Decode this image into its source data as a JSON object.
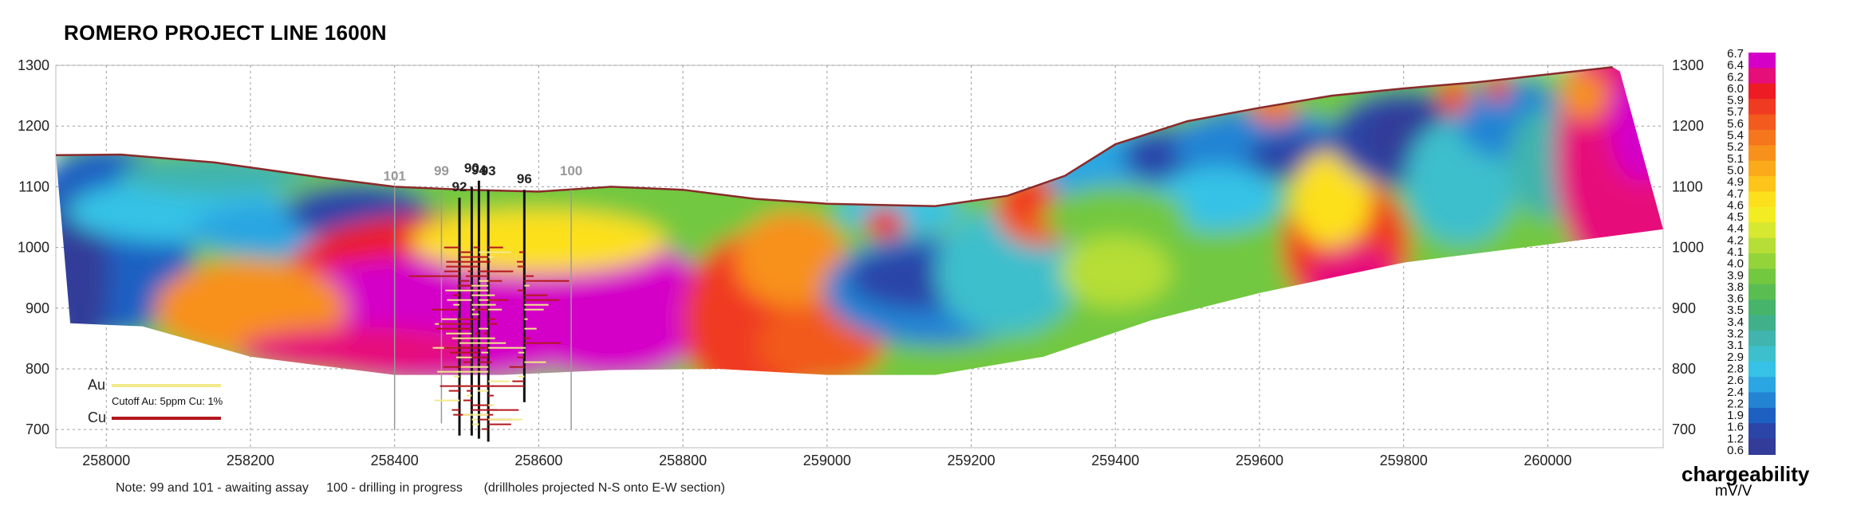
{
  "chart_data": {
    "type": "heatmap",
    "title": "ROMERO PROJECT LINE 1600N",
    "xlabel": "",
    "ylabel": "",
    "xlim": [
      257930,
      260160
    ],
    "ylim": [
      670,
      1300
    ],
    "x_ticks": [
      "258000",
      "258200",
      "258400",
      "258600",
      "258800",
      "259000",
      "259200",
      "259400",
      "259600",
      "259800",
      "260000"
    ],
    "y_ticks": [
      "1300",
      "1200",
      "1100",
      "1000",
      "900",
      "800",
      "700"
    ],
    "grid": true,
    "colorbar": {
      "title": "chargeability",
      "unit": "mV/V",
      "labels": [
        "6.7",
        "6.4",
        "6.2",
        "6.0",
        "5.9",
        "5.7",
        "5.6",
        "5.4",
        "5.2",
        "5.1",
        "5.0",
        "4.9",
        "4.7",
        "4.6",
        "4.5",
        "4.4",
        "4.2",
        "4.1",
        "4.0",
        "3.9",
        "3.8",
        "3.6",
        "3.5",
        "3.4",
        "3.2",
        "3.1",
        "2.9",
        "2.8",
        "2.6",
        "2.4",
        "2.2",
        "1.9",
        "1.6",
        "1.2",
        "0.6"
      ],
      "colors": [
        "#d400c8",
        "#e60f7a",
        "#ed1c24",
        "#f03a22",
        "#f25a1e",
        "#f5761d",
        "#f8901c",
        "#fbab1a",
        "#fdc41a",
        "#fde01c",
        "#f3ec22",
        "#d7e830",
        "#b6de36",
        "#94d43a",
        "#72c83f",
        "#5abd52",
        "#46b46a",
        "#3fb08a",
        "#40b4ad",
        "#3ebfcc",
        "#36c2e6",
        "#2ca6e2",
        "#2484d4",
        "#1e60c2",
        "#2c45a8",
        "#333c99"
      ]
    },
    "surface_profile": [
      [
        257930,
        1152
      ],
      [
        258020,
        1153
      ],
      [
        258150,
        1140
      ],
      [
        258300,
        1115
      ],
      [
        258400,
        1100
      ],
      [
        258500,
        1095
      ],
      [
        258600,
        1092
      ],
      [
        258700,
        1100
      ],
      [
        258800,
        1095
      ],
      [
        258900,
        1080
      ],
      [
        259000,
        1072
      ],
      [
        259150,
        1068
      ],
      [
        259250,
        1085
      ],
      [
        259330,
        1118
      ],
      [
        259400,
        1170
      ],
      [
        259500,
        1208
      ],
      [
        259600,
        1230
      ],
      [
        259700,
        1250
      ],
      [
        259800,
        1262
      ],
      [
        259900,
        1272
      ],
      [
        260000,
        1285
      ],
      [
        260090,
        1297
      ]
    ],
    "section_base": [
      [
        257930,
        1152
      ],
      [
        257950,
        875
      ],
      [
        258050,
        870
      ],
      [
        258200,
        820
      ],
      [
        258400,
        790
      ],
      [
        258550,
        790
      ],
      [
        258700,
        798
      ],
      [
        258850,
        800
      ],
      [
        259000,
        790
      ],
      [
        259150,
        790
      ],
      [
        259300,
        820
      ],
      [
        259450,
        880
      ],
      [
        259600,
        925
      ],
      [
        259800,
        975
      ],
      [
        260000,
        1005
      ],
      [
        260160,
        1030
      ],
      [
        260100,
        1290
      ],
      [
        260090,
        1297
      ]
    ],
    "drillholes": [
      {
        "label": "101",
        "x": 258400,
        "top": 1100,
        "bottom": 700,
        "status": "awaiting assay"
      },
      {
        "label": "99",
        "x": 258465,
        "top": 1095,
        "bottom": 710,
        "status": "awaiting assay"
      },
      {
        "label": "92",
        "x": 258490,
        "top": 1082,
        "bottom": 690,
        "status": ""
      },
      {
        "label": "90",
        "x": 258507,
        "top": 1100,
        "bottom": 690,
        "status": ""
      },
      {
        "label": "94",
        "x": 258517,
        "top": 1110,
        "bottom": 685,
        "status": ""
      },
      {
        "label": "93",
        "x": 258530,
        "top": 1095,
        "bottom": 680,
        "status": ""
      },
      {
        "label": "96",
        "x": 258580,
        "top": 1095,
        "bottom": 745,
        "status": ""
      },
      {
        "label": "100",
        "x": 258645,
        "top": 1095,
        "bottom": 700,
        "status": "drilling in progress"
      }
    ],
    "legend": {
      "au_label": "Au",
      "cu_label": "Cu",
      "cutoff": "Cutoff  Au: 5ppm  Cu: 1%",
      "au_color": "#f2ea8a",
      "cu_color": "#b3171d"
    },
    "note": "Note: 99 and 101 - awaiting assay     100 - drilling in progress      (drillholes projected N-S onto E-W section)"
  }
}
